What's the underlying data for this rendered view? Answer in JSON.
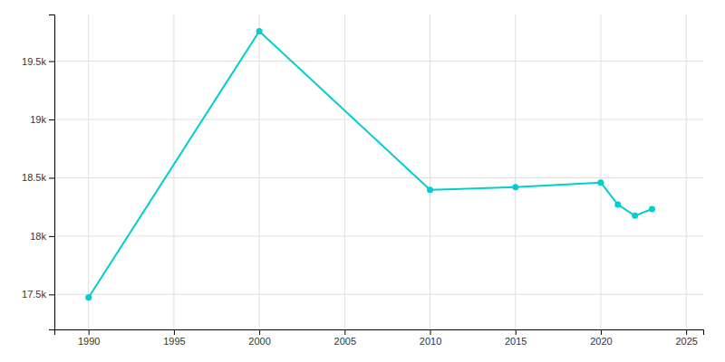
{
  "chart_data": {
    "type": "line",
    "x": [
      1990,
      2000,
      2010,
      2015,
      2020,
      2021,
      2022,
      2023
    ],
    "values": [
      17473,
      19757,
      18396,
      18420,
      18459,
      18270,
      18175,
      18232
    ],
    "color": "#00CED1",
    "marker": "circle",
    "xlim": [
      1988,
      2026
    ],
    "xticks": [
      1990,
      1995,
      2000,
      2005,
      2010,
      2015,
      2020,
      2025
    ],
    "ylim": [
      17200,
      19900
    ],
    "yticks": [
      {
        "value": 17500,
        "label": "17.5k"
      },
      {
        "value": 18000,
        "label": "18k"
      },
      {
        "value": 18500,
        "label": "18.5k"
      },
      {
        "value": 19000,
        "label": "19k"
      },
      {
        "value": 19500,
        "label": "19.5k"
      }
    ],
    "grid": true
  }
}
